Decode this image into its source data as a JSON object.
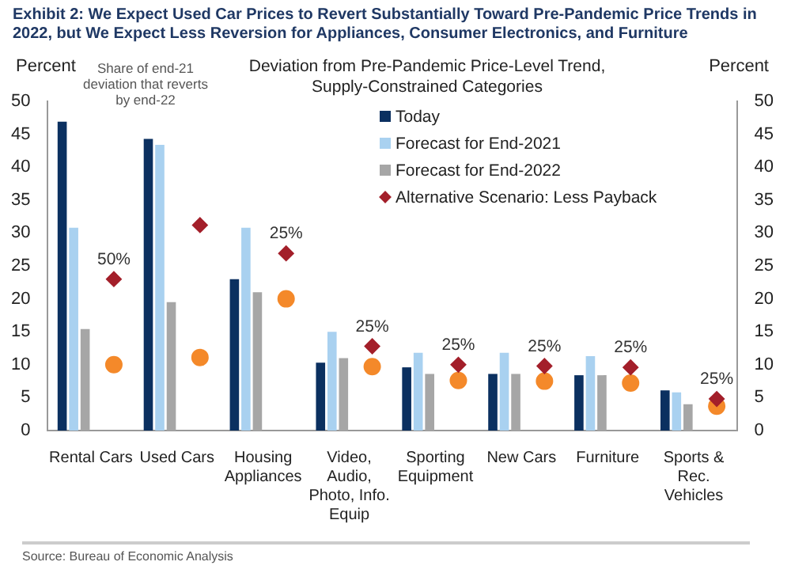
{
  "chart_data": {
    "type": "bar",
    "title": "Exhibit 2: We Expect Used Car Prices to Revert Substantially Toward Pre-Pandemic Price Trends in 2022, but We Expect Less Reversion for Appliances, Consumer Electronics, and Furniture",
    "subtitle": "Deviation from Pre-Pandemic Price-Level Trend, Supply-Constrained Categories",
    "ylabel": "Percent",
    "y2label": "Percent",
    "categories": [
      "Rental Cars",
      "Used Cars",
      "Housing Appliances",
      "Video, Audio, Photo, Info. Equip",
      "Sporting Equipment",
      "New Cars",
      "Furniture",
      "Sports & Rec. Vehicles"
    ],
    "series": [
      {
        "name": "Today",
        "color": "#0b3060",
        "values": [
          46.9,
          44.3,
          23,
          10.3,
          9.6,
          8.6,
          8.4,
          6.1
        ]
      },
      {
        "name": "Forecast for End-2021",
        "color": "#a9d1f0",
        "values": [
          30.8,
          43.4,
          30.8,
          15,
          11.8,
          11.8,
          11.3,
          5.8
        ]
      },
      {
        "name": "Forecast for End-2022",
        "color": "#a6a6a6",
        "values": [
          15.4,
          19.5,
          21,
          11,
          8.6,
          8.6,
          8.4,
          4
        ]
      },
      {
        "name": "Alternative Scenario: Less Payback",
        "type": "scatter",
        "marker": "diamond",
        "color": "#a31f2a",
        "values": [
          23,
          31.2,
          26.9,
          12.8,
          10,
          9.8,
          9.6,
          4.8
        ]
      },
      {
        "type": "scatter",
        "marker": "circle",
        "color": "#f4892a",
        "values": [
          10,
          11.1,
          20,
          9.7,
          7.6,
          7.5,
          7.2,
          3.7
        ]
      }
    ],
    "ylim": [
      0,
      50
    ],
    "yticks": [
      0,
      5,
      10,
      15,
      20,
      25,
      30,
      35,
      40,
      45,
      50
    ],
    "y2lim": [
      0,
      50
    ],
    "y2ticks": [
      0,
      5,
      10,
      15,
      20,
      25,
      30,
      35,
      40,
      45,
      50
    ],
    "grid": false,
    "legend": "top right",
    "annotations": [
      "Share of end-21 deviation that reverts by end-22",
      "50%",
      "25%",
      "25%",
      "25%",
      "25%",
      "25%",
      "25%",
      "Source: Bureau of Economic Analysis"
    ]
  }
}
